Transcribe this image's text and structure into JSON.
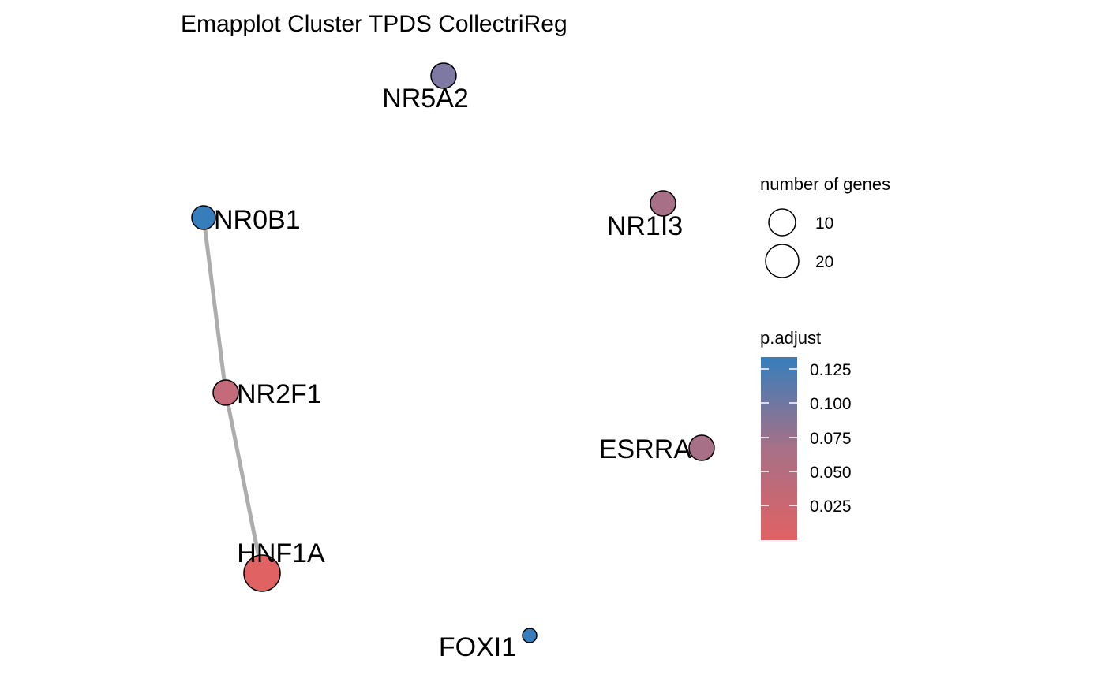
{
  "title": "Emapplot Cluster TPDS CollectriReg",
  "nodes": [
    {
      "id": "NR5A2",
      "label": "NR5A2",
      "color": "#7E79A3"
    },
    {
      "id": "NR0B1",
      "label": "NR0B1",
      "color": "#367EBB"
    },
    {
      "id": "NR1I3",
      "label": "NR1I3",
      "color": "#A77087"
    },
    {
      "id": "NR2F1",
      "label": "NR2F1",
      "color": "#C46A7A"
    },
    {
      "id": "ESRRA",
      "label": "ESRRA",
      "color": "#A77087"
    },
    {
      "id": "HNF1A",
      "label": "HNF1A",
      "color": "#E06263"
    },
    {
      "id": "FOXI1",
      "label": "FOXI1",
      "color": "#367EBB"
    }
  ],
  "edges": [
    {
      "source": "NR0B1",
      "target": "NR2F1"
    },
    {
      "source": "NR2F1",
      "target": "HNF1A"
    }
  ],
  "legend": {
    "size": {
      "title": "number of genes",
      "entries": [
        {
          "label": "10",
          "value": 10
        },
        {
          "label": "20",
          "value": 20
        }
      ]
    },
    "color": {
      "title": "p.adjust",
      "ticks": [
        "0.125",
        "0.100",
        "0.075",
        "0.050",
        "0.025"
      ],
      "low_color": "#E06263",
      "high_color": "#367EBB"
    }
  },
  "colors": {
    "edge": "#ADADAD",
    "node_stroke": "#000000"
  }
}
